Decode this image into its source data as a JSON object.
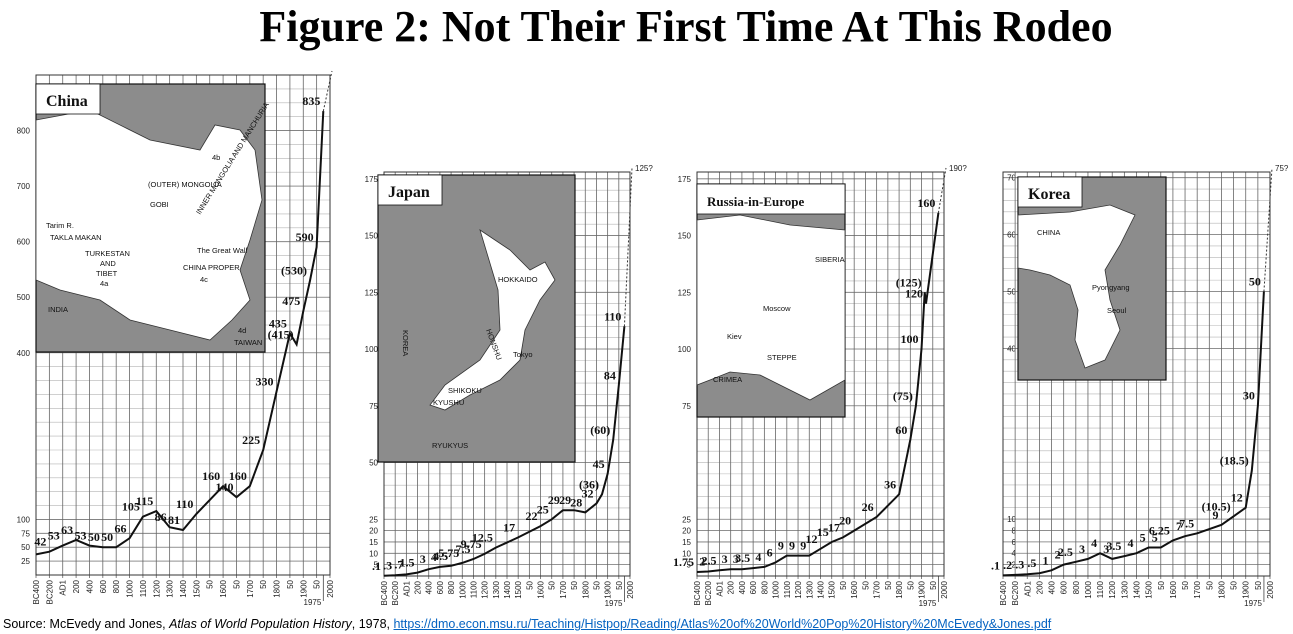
{
  "title": "Figure 2: Not Their First Time At This Rodeo",
  "chart_data": [
    {
      "type": "line",
      "map": {
        "title": "China",
        "labels": [
          "(OUTER) MONGOLIA",
          "GOBI",
          "INNER MONGOLIA AND MANCHURIA",
          "4b",
          "Tarim R.",
          "TAKLA MAKAN",
          "TURKESTAN",
          "AND",
          "TIBET",
          "4a",
          "The Great Wall",
          "CHINA PROPER",
          "4c",
          "INDIA",
          "4d",
          "TAIWAN"
        ]
      },
      "xticks": [
        {
          "value": -400,
          "label": "BC400"
        },
        {
          "value": -200,
          "label": "BC200"
        },
        {
          "value": 1,
          "label": "AD1"
        },
        200,
        400,
        600,
        800,
        1000,
        1100,
        1200,
        1300,
        1400,
        1500,
        {
          "value": 1550,
          "label": "50"
        },
        1600,
        {
          "value": 1650,
          "label": "50"
        },
        1700,
        {
          "value": 1750,
          "label": "50"
        },
        1800,
        {
          "value": 1850,
          "label": "50"
        },
        1900,
        {
          "value": 1950,
          "label": "50"
        },
        2000
      ],
      "xtick_extra": 1975,
      "ylim": [
        0,
        900
      ],
      "yticks": [
        25,
        50,
        75,
        100,
        400,
        500,
        600,
        700,
        800
      ],
      "ygrid_step": 25,
      "grid": true,
      "series": [
        {
          "color": "#111111",
          "x": [
            -400,
            -200,
            1,
            200,
            400,
            600,
            800,
            1000,
            1100,
            1200,
            1300,
            1400,
            1500,
            1600,
            1650,
            1700,
            1750,
            1800,
            1850,
            1875,
            1900,
            1925,
            1950,
            1975
          ],
          "values": [
            37,
            42,
            53,
            63,
            53,
            50,
            50,
            66,
            105,
            115,
            86,
            81,
            110,
            160,
            140,
            160,
            225,
            330,
            435,
            415,
            475,
            530,
            590,
            835
          ],
          "value_labels": [
            null,
            "42",
            "53",
            "63",
            "53",
            "50",
            "50",
            "66",
            "105",
            "115",
            "86",
            "81",
            "110",
            "160",
            "140",
            "160",
            "225",
            "330",
            "435",
            "(415)",
            "475",
            "(530)",
            "590",
            "835"
          ]
        }
      ]
    },
    {
      "type": "line",
      "map": {
        "title": "Japan",
        "labels": [
          "KOREA",
          "HOKKAIDO",
          "HONSHU",
          "Tokyo",
          "SHIKOKU",
          "KYUSHU",
          "RYUKYUS"
        ]
      },
      "xticks": [
        {
          "value": -400,
          "label": "BC400"
        },
        {
          "value": -200,
          "label": "BC200"
        },
        {
          "value": 1,
          "label": "AD1"
        },
        200,
        400,
        600,
        800,
        1000,
        1100,
        1200,
        1300,
        1400,
        1500,
        {
          "value": 1550,
          "label": "50"
        },
        1600,
        {
          "value": 1650,
          "label": "50"
        },
        1700,
        {
          "value": 1750,
          "label": "50"
        },
        1800,
        {
          "value": 1850,
          "label": "50"
        },
        1900,
        {
          "value": 1950,
          "label": "50"
        },
        2000
      ],
      "xtick_extra": 1975,
      "ylim": [
        0,
        178
      ],
      "yticks": [
        5,
        10,
        15,
        20,
        25,
        50,
        75,
        100,
        125,
        150,
        175
      ],
      "ygrid_step": 5,
      "grid": true,
      "projection_label": "125?",
      "series": [
        {
          "color": "#111111",
          "x": [
            -400,
            -200,
            1,
            200,
            400,
            600,
            800,
            1000,
            1100,
            1200,
            1300,
            1500,
            1600,
            1650,
            1700,
            1750,
            1800,
            1850,
            1875,
            1900,
            1925,
            1950,
            1975
          ],
          "values": [
            0.1,
            0.3,
            0.7,
            1.5,
            3,
            4,
            4.5,
            5.75,
            7.5,
            9.75,
            12.5,
            17,
            22,
            25,
            29,
            29,
            28,
            32,
            36,
            45,
            60,
            84,
            110
          ],
          "value_labels": [
            ".1",
            ".3",
            ".7",
            "1.5",
            "3",
            "4",
            "4.5",
            "5.75",
            "7.5",
            "9.75",
            "12.5",
            "17",
            "22",
            "25",
            "29",
            "29",
            "28",
            "32",
            "(36)",
            "45",
            "(60)",
            "84",
            "110"
          ]
        }
      ]
    },
    {
      "type": "line",
      "map": {
        "title": "Russia-in-Europe",
        "labels": [
          "SIBERIA",
          "Moscow",
          "Kiev",
          "STEPPE",
          "CRIMEA"
        ]
      },
      "xticks": [
        {
          "value": -400,
          "label": "BC400"
        },
        {
          "value": -200,
          "label": "BC200"
        },
        {
          "value": 1,
          "label": "AD1"
        },
        200,
        400,
        600,
        800,
        1000,
        1100,
        1200,
        1300,
        1400,
        1500,
        {
          "value": 1550,
          "label": "50"
        },
        1600,
        {
          "value": 1650,
          "label": "50"
        },
        1700,
        {
          "value": 1750,
          "label": "50"
        },
        1800,
        {
          "value": 1850,
          "label": "50"
        },
        1900,
        {
          "value": 1950,
          "label": "50"
        },
        2000
      ],
      "xtick_extra": 1975,
      "ylim": [
        0,
        178
      ],
      "yticks": [
        5,
        10,
        15,
        20,
        25,
        75,
        100,
        125,
        150,
        175
      ],
      "ygrid_step": 5,
      "grid": true,
      "projection_label": "190?",
      "series": [
        {
          "color": "#111111",
          "x": [
            -400,
            -200,
            1,
            200,
            400,
            600,
            800,
            1000,
            1100,
            1200,
            1300,
            1400,
            1500,
            1550,
            1600,
            1700,
            1800,
            1850,
            1875,
            1900,
            1914,
            1920,
            1975
          ],
          "values": [
            1.75,
            2,
            2.5,
            3,
            3,
            3.5,
            4,
            6,
            9,
            9,
            9,
            12,
            15,
            17,
            20,
            26,
            36,
            60,
            75,
            100,
            125,
            120,
            160
          ],
          "value_labels": [
            "1.75",
            "2",
            "2.5",
            "3",
            "3",
            "3.5",
            "4",
            "6",
            "9",
            "9",
            "9",
            "12",
            "15",
            "17",
            "20",
            "26",
            "36",
            "60",
            "(75)",
            "100",
            "(125)",
            "120",
            "160"
          ]
        }
      ]
    },
    {
      "type": "line",
      "map": {
        "title": "Korea",
        "labels": [
          "CHINA",
          "Pyongyang",
          "Seoul"
        ]
      },
      "xticks": [
        {
          "value": -400,
          "label": "BC400"
        },
        {
          "value": -200,
          "label": "BC200"
        },
        {
          "value": 1,
          "label": "AD1"
        },
        200,
        400,
        600,
        800,
        1000,
        1100,
        1200,
        1300,
        1400,
        1500,
        {
          "value": 1550,
          "label": "50"
        },
        1600,
        {
          "value": 1650,
          "label": "50"
        },
        1700,
        {
          "value": 1750,
          "label": "50"
        },
        1800,
        {
          "value": 1850,
          "label": "50"
        },
        1900,
        {
          "value": 1950,
          "label": "50"
        },
        2000
      ],
      "xtick_extra": 1975,
      "ylim": [
        0,
        71
      ],
      "yticks": [
        2,
        4,
        6,
        8,
        10,
        40,
        50,
        60,
        70
      ],
      "ygrid_step": 2,
      "grid": true,
      "projection_label": "75?",
      "series": [
        {
          "color": "#111111",
          "x": [
            -400,
            -200,
            1,
            200,
            400,
            600,
            800,
            1000,
            1100,
            1200,
            1300,
            1400,
            1500,
            1550,
            1600,
            1650,
            1700,
            1800,
            1850,
            1900,
            1925,
            1950,
            1975
          ],
          "values": [
            0.1,
            0.2,
            0.3,
            0.5,
            1,
            2,
            2.5,
            3,
            4,
            3,
            3.5,
            4,
            5,
            5,
            6.25,
            7,
            7.5,
            9,
            10.5,
            12,
            18.5,
            30,
            50
          ],
          "value_labels": [
            ".1",
            ".2",
            ".3",
            ".5",
            "1",
            "2",
            "2.5",
            "3",
            "4",
            "3",
            "3.5",
            "4",
            "5",
            "5",
            "6.25",
            "7",
            "7.5",
            "9",
            "(10.5)",
            "12",
            "(18.5)",
            "30",
            "50"
          ]
        }
      ]
    }
  ],
  "source": {
    "prefix": "Source: McEvedy and Jones, ",
    "book": "Atlas of World Population History",
    "suffix": ", 1978, ",
    "url": "https://dmo.econ.msu.ru/Teaching/Histpop/Reading/Atlas%20of%20World%20Pop%20History%20McEvedy&Jones.pdf"
  }
}
